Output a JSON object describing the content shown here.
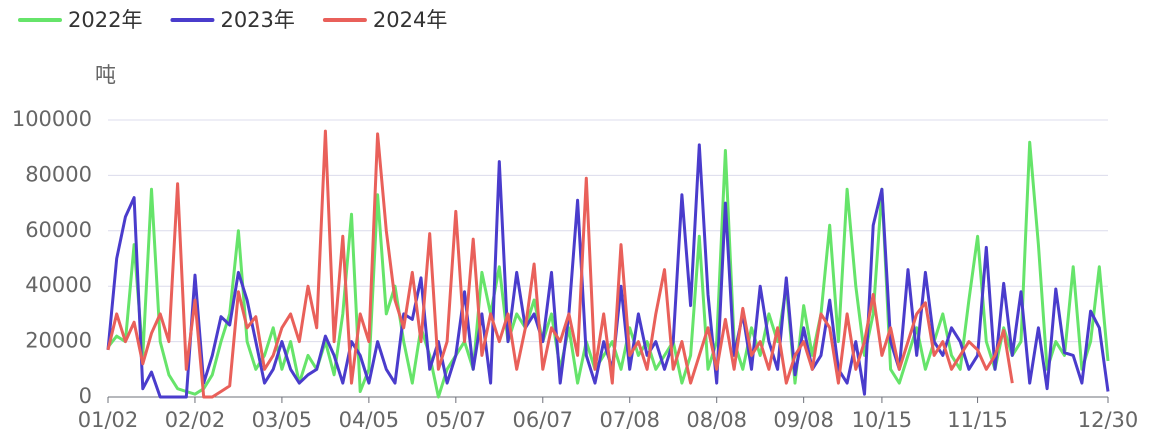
{
  "chart_data": {
    "type": "line",
    "y_label": "吨",
    "categories": [
      "01/02",
      null,
      null,
      null,
      null,
      null,
      null,
      null,
      null,
      null,
      "02/02",
      null,
      null,
      null,
      null,
      null,
      null,
      null,
      null,
      null,
      "03/05",
      null,
      null,
      null,
      null,
      null,
      null,
      null,
      null,
      null,
      "04/05",
      null,
      null,
      null,
      null,
      null,
      null,
      null,
      null,
      null,
      "05/07",
      null,
      null,
      null,
      null,
      null,
      null,
      null,
      null,
      null,
      "06/07",
      null,
      null,
      null,
      null,
      null,
      null,
      null,
      null,
      null,
      "07/08",
      null,
      null,
      null,
      null,
      null,
      null,
      null,
      null,
      null,
      "08/08",
      null,
      null,
      null,
      null,
      null,
      null,
      null,
      null,
      null,
      "09/08",
      null,
      null,
      null,
      null,
      null,
      null,
      null,
      null,
      "10/15",
      null,
      null,
      null,
      null,
      null,
      null,
      null,
      null,
      null,
      null,
      "11/15",
      null,
      null,
      null,
      null,
      null,
      null,
      null,
      null,
      null,
      null,
      null,
      null,
      null,
      null,
      "12/30"
    ],
    "series": [
      {
        "name": "2022年",
        "color": "#66e46a",
        "values": [
          18000,
          22000,
          20000,
          55000,
          15000,
          75000,
          20000,
          8000,
          3000,
          2000,
          1000,
          3000,
          8000,
          20000,
          30000,
          60000,
          20000,
          10000,
          15000,
          25000,
          10000,
          20000,
          5000,
          15000,
          10000,
          20000,
          8000,
          30000,
          66000,
          2000,
          10000,
          73000,
          30000,
          40000,
          20000,
          5000,
          25000,
          15000,
          0,
          10000,
          15000,
          20000,
          10000,
          45000,
          30000,
          47000,
          20000,
          30000,
          25000,
          35000,
          20000,
          30000,
          10000,
          25000,
          5000,
          20000,
          10000,
          15000,
          20000,
          10000,
          25000,
          15000,
          20000,
          10000,
          15000,
          20000,
          5000,
          15000,
          58000,
          10000,
          20000,
          89000,
          20000,
          10000,
          25000,
          15000,
          30000,
          20000,
          40000,
          5000,
          33000,
          15000,
          30000,
          62000,
          20000,
          75000,
          40000,
          15000,
          30000,
          75000,
          10000,
          5000,
          15000,
          25000,
          10000,
          20000,
          30000,
          15000,
          10000,
          35000,
          58000,
          20000,
          10000,
          25000,
          15000,
          20000,
          92000,
          55000,
          10000,
          20000,
          15000,
          47000,
          10000,
          20000,
          47000,
          13000
        ]
      },
      {
        "name": "2023年",
        "color": "#4a3ccc",
        "values": [
          17000,
          50000,
          65000,
          72000,
          3000,
          9000,
          0,
          0,
          0,
          0,
          44000,
          5000,
          15000,
          29000,
          26000,
          45000,
          35000,
          20000,
          5000,
          10000,
          20000,
          10000,
          5000,
          8000,
          10000,
          22000,
          15000,
          5000,
          20000,
          15000,
          5000,
          20000,
          10000,
          5000,
          30000,
          28000,
          43000,
          10000,
          20000,
          5000,
          15000,
          38000,
          10000,
          30000,
          5000,
          85000,
          20000,
          45000,
          25000,
          30000,
          20000,
          45000,
          5000,
          30000,
          71000,
          15000,
          5000,
          20000,
          10000,
          40000,
          10000,
          30000,
          15000,
          20000,
          10000,
          20000,
          73000,
          33000,
          91000,
          37000,
          5000,
          70000,
          15000,
          30000,
          10000,
          40000,
          20000,
          10000,
          43000,
          8000,
          25000,
          10000,
          15000,
          35000,
          10000,
          5000,
          20000,
          1000,
          62000,
          75000,
          20000,
          10000,
          46000,
          15000,
          45000,
          20000,
          15000,
          25000,
          20000,
          10000,
          15000,
          54000,
          10000,
          41000,
          15000,
          38000,
          5000,
          25000,
          3000,
          39000,
          16000,
          15000,
          5000,
          31000,
          25000,
          2000
        ]
      },
      {
        "name": "2024年",
        "color": "#e9605a",
        "values": [
          17000,
          30000,
          20000,
          27000,
          12000,
          23000,
          30000,
          20000,
          77000,
          10000,
          35000,
          0,
          0,
          2000,
          4000,
          38000,
          25000,
          29000,
          10000,
          15000,
          25000,
          30000,
          20000,
          40000,
          25000,
          96000,
          20000,
          58000,
          5000,
          30000,
          20000,
          95000,
          60000,
          35000,
          25000,
          45000,
          20000,
          59000,
          10000,
          20000,
          67000,
          20000,
          57000,
          15000,
          30000,
          20000,
          30000,
          10000,
          25000,
          48000,
          10000,
          25000,
          20000,
          30000,
          15000,
          79000,
          10000,
          30000,
          5000,
          55000,
          15000,
          20000,
          10000,
          30000,
          46000,
          10000,
          20000,
          5000,
          15000,
          25000,
          10000,
          28000,
          10000,
          32000,
          15000,
          20000,
          10000,
          25000,
          5000,
          15000,
          20000,
          10000,
          30000,
          25000,
          5000,
          30000,
          10000,
          20000,
          37000,
          15000,
          25000,
          10000,
          20000,
          30000,
          34000,
          15000,
          20000,
          10000,
          15000,
          20000,
          17000,
          10000,
          15000,
          24000,
          5000,
          null,
          null,
          null,
          null,
          null,
          null,
          null,
          null,
          null,
          null,
          null
        ]
      }
    ],
    "ylim": [
      0,
      100000
    ],
    "yticks": [
      0,
      20000,
      40000,
      60000,
      80000,
      100000
    ],
    "grid": true,
    "legend": "top-left"
  }
}
